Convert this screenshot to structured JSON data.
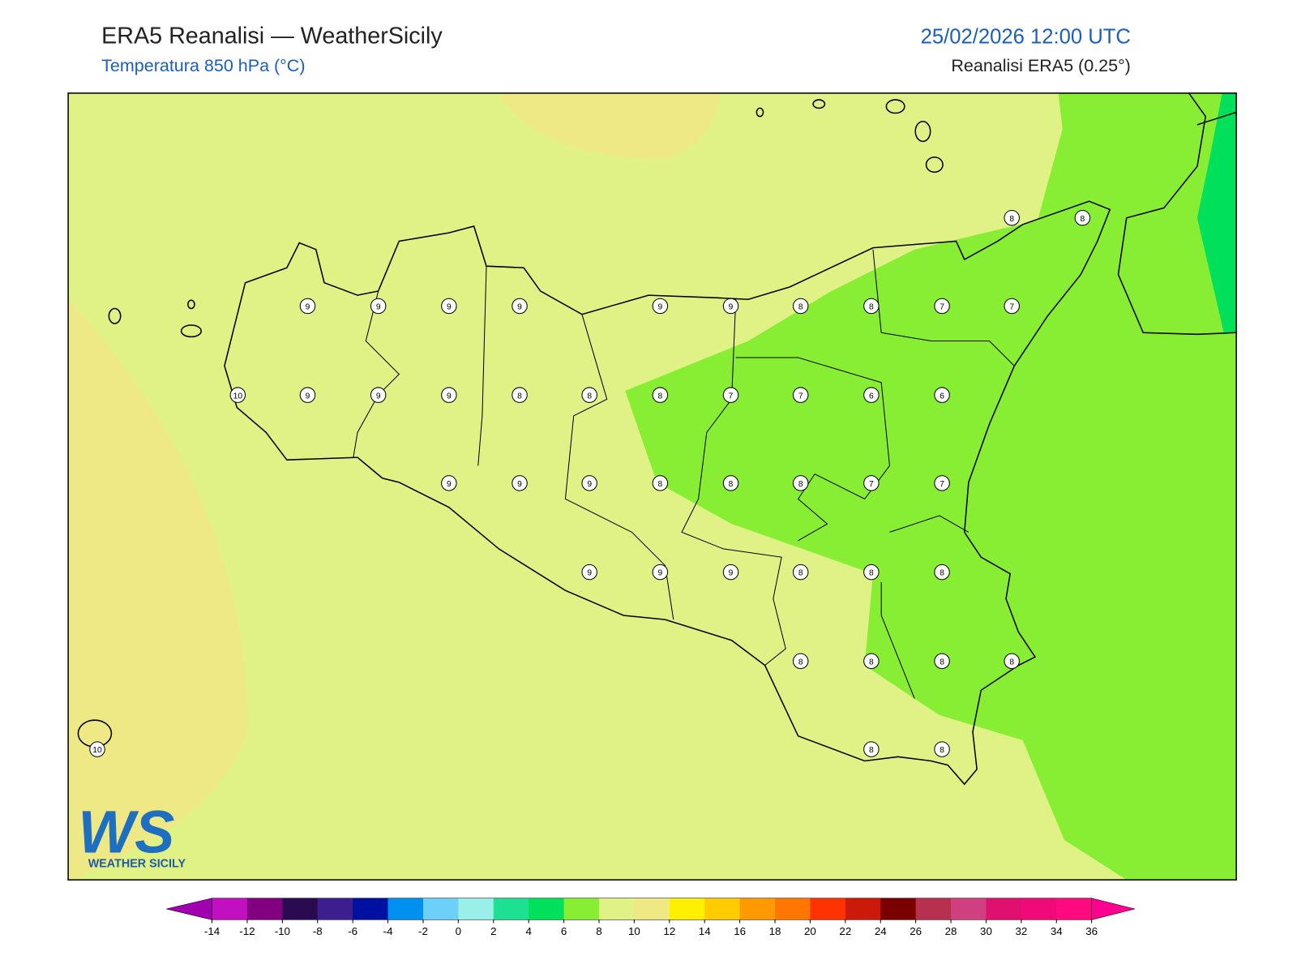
{
  "header": {
    "title": "ERA5 Reanalisi — WeatherSicily",
    "subtitle": "Temperatura 850 hPa (°C)",
    "datetime": "25/02/2026 12:00 UTC",
    "source": "Reanalisi ERA5 (0.25°)"
  },
  "logo": {
    "mark": "WS",
    "text": "WEATHER SICILY"
  },
  "stations": [
    8,
    8,
    9,
    9,
    9,
    9,
    9,
    9,
    8,
    8,
    7,
    7,
    10,
    9,
    9,
    9,
    8,
    8,
    8,
    7,
    7,
    6,
    6,
    9,
    9,
    9,
    8,
    8,
    8,
    7,
    7,
    9,
    9,
    9,
    8,
    8,
    8,
    8,
    8,
    8,
    8,
    10,
    8,
    8
  ],
  "colorbar": {
    "ticks": [
      -14,
      -12,
      -10,
      -8,
      -6,
      -4,
      -2,
      0,
      2,
      4,
      6,
      8,
      10,
      12,
      14,
      16,
      18,
      20,
      22,
      24,
      26,
      28,
      30,
      32,
      34,
      36
    ],
    "under_color": "#a000b0",
    "over_color": "#ff0090",
    "colors": [
      "#c010c0",
      "#800080",
      "#2a0a50",
      "#3c1e8c",
      "#0010a0",
      "#0090f0",
      "#6cd0f8",
      "#9af0e8",
      "#1ee092",
      "#00e05a",
      "#88ee33",
      "#e0f285",
      "#eee885",
      "#fff000",
      "#ffcc00",
      "#ff9900",
      "#ff7700",
      "#ff3300",
      "#cc1a0a",
      "#7a0000",
      "#b83050",
      "#d04080",
      "#e01070",
      "#f00a78",
      "#ff0a80"
    ]
  }
}
